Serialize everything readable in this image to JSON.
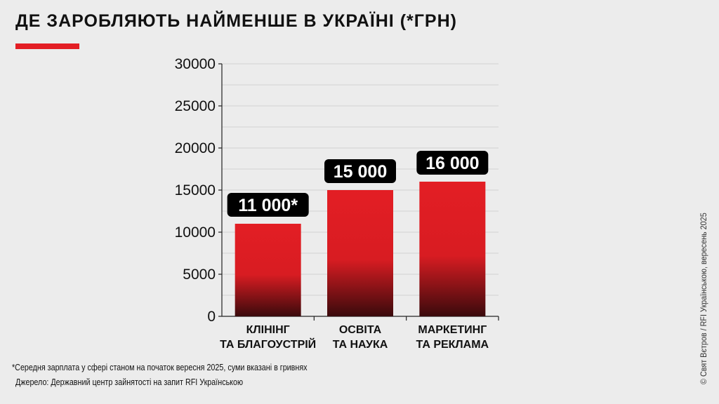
{
  "title": "ДЕ ЗАРОБЛЯЮТЬ НАЙМЕНШЕ В УКРАЇНІ (*ГРН)",
  "footnote": "*Середня зарплата у сфері станом на початок вересня 2025, суми вказані в гривнях",
  "source": "Джерело: Державний центр зайнятості на запит RFI Українською",
  "credit": "© Свят Вєтров / RFI Українською, вересень 2025",
  "colors": {
    "accent": "#e31e24",
    "bar_bottom": "#3a0a0c",
    "label_bg": "#000000"
  },
  "chart_data": {
    "type": "bar",
    "categories": [
      [
        "КЛІНІНГ",
        "ТА БЛАГОУСТРІЙ"
      ],
      [
        "ОСВІТА",
        "ТА НАУКА"
      ],
      [
        "МАРКЕТИНГ",
        "ТА РЕКЛАМА"
      ]
    ],
    "values": [
      11000,
      15000,
      16000
    ],
    "data_labels": [
      "11 000*",
      "15 000",
      "16 000"
    ],
    "ylim": [
      0,
      30000
    ],
    "yticks": [
      0,
      5000,
      10000,
      15000,
      20000,
      25000,
      30000
    ],
    "ytick_labels": [
      "0",
      "5000",
      "10000",
      "15000",
      "20000",
      "25000",
      "30000"
    ],
    "grid": true,
    "xlabel": "",
    "ylabel": ""
  }
}
